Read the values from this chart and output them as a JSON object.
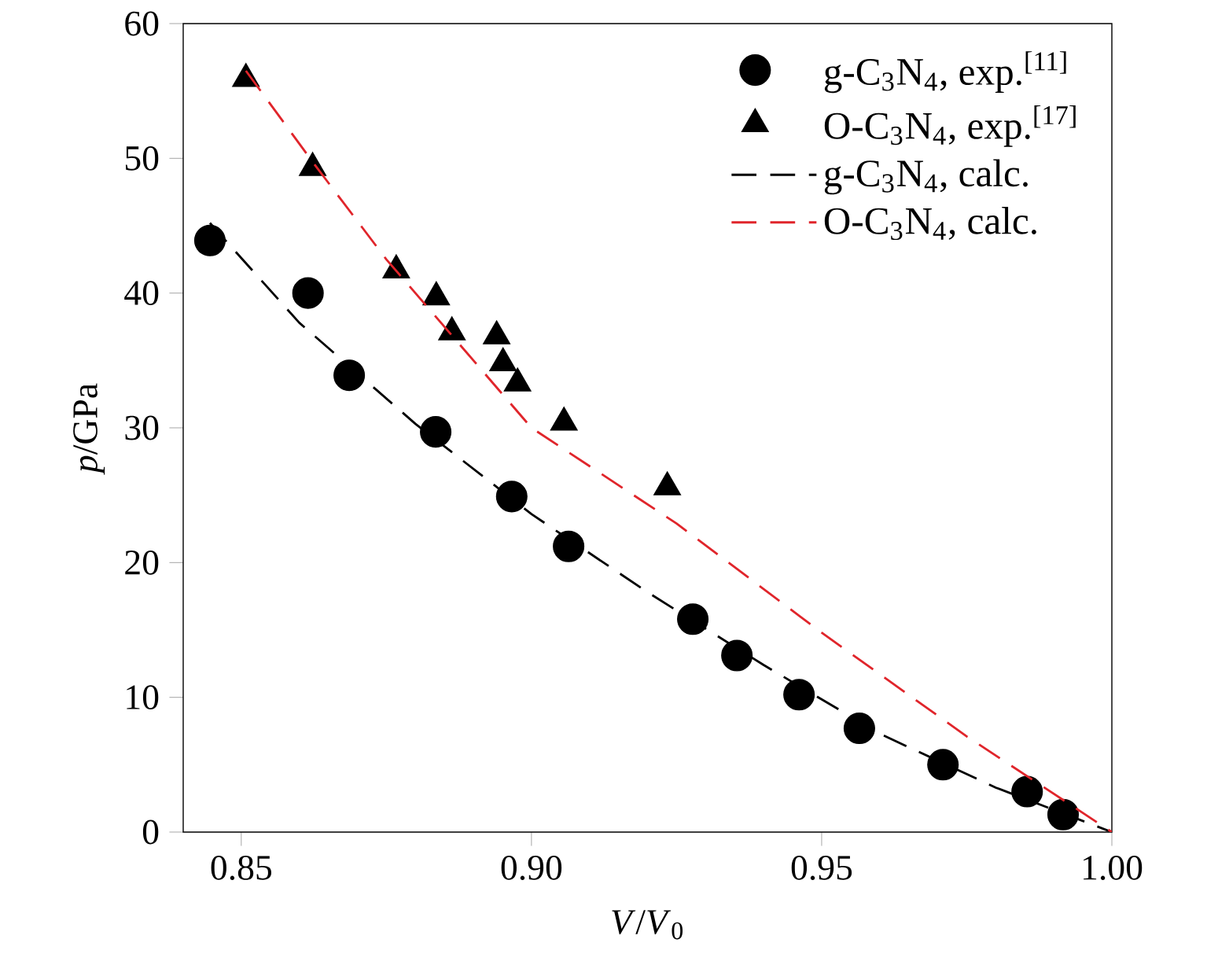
{
  "chart_data": {
    "type": "scatter",
    "xlabel": "*V*/*V*$_{0}$",
    "ylabel": "*p*/GPa",
    "xlim": [
      0.84,
      1.0
    ],
    "ylim": [
      0,
      60
    ],
    "xticks": [
      {
        "value": 0.85,
        "label": "0.85"
      },
      {
        "value": 0.9,
        "label": "0.90"
      },
      {
        "value": 0.95,
        "label": "0.95"
      },
      {
        "value": 1.0,
        "label": "1.00"
      }
    ],
    "yticks": [
      0,
      10,
      20,
      30,
      40,
      50,
      60
    ],
    "legend": "top right",
    "grid": false,
    "series": [
      {
        "name": "g-C$_{3}$N$_{4}$, exp.$^{[11]}$",
        "type": "scatter",
        "marker": "circle",
        "color": "#000000",
        "x": [
          0.8446,
          0.8615,
          0.8686,
          0.8835,
          0.8966,
          0.9064,
          0.9278,
          0.9354,
          0.9461,
          0.9565,
          0.9709,
          0.9854,
          0.9916
        ],
        "values": [
          43.9,
          40.0,
          33.9,
          29.7,
          24.9,
          21.2,
          15.8,
          13.1,
          10.2,
          7.7,
          5.0,
          3.0,
          1.3
        ]
      },
      {
        "name": "O-C$_{3}$N$_{4}$, exp.$^{[17]}$",
        "type": "scatter",
        "marker": "triangle",
        "color": "#000000",
        "x": [
          0.8508,
          0.8623,
          0.8767,
          0.8836,
          0.8863,
          0.894,
          0.8951,
          0.8976,
          0.9056,
          0.9234
        ],
        "values": [
          55.9,
          49.3,
          41.7,
          39.7,
          37.1,
          36.8,
          34.8,
          33.3,
          30.4,
          25.6
        ]
      },
      {
        "name": "g-C$_{3}$N$_{4}$, calc.",
        "type": "line",
        "line_style": "dashed",
        "color": "#000000",
        "x": [
          0.8446,
          0.86,
          0.88,
          0.9,
          0.92,
          0.94,
          0.96,
          0.98,
          1.0
        ],
        "values": [
          45.2,
          37.8,
          30.3,
          23.6,
          17.8,
          12.4,
          7.3,
          3.3,
          0
        ]
      },
      {
        "name": "O-C$_{3}$N$_{4}$, calc.",
        "type": "line",
        "line_style": "dashed",
        "color": "#e0252b",
        "x": [
          0.8508,
          0.8627,
          0.875,
          0.9,
          0.925,
          0.95,
          0.975,
          1.0
        ],
        "values": [
          56.5,
          49.5,
          42.5,
          30.0,
          22.9,
          14.8,
          7.1,
          0
        ]
      }
    ]
  }
}
